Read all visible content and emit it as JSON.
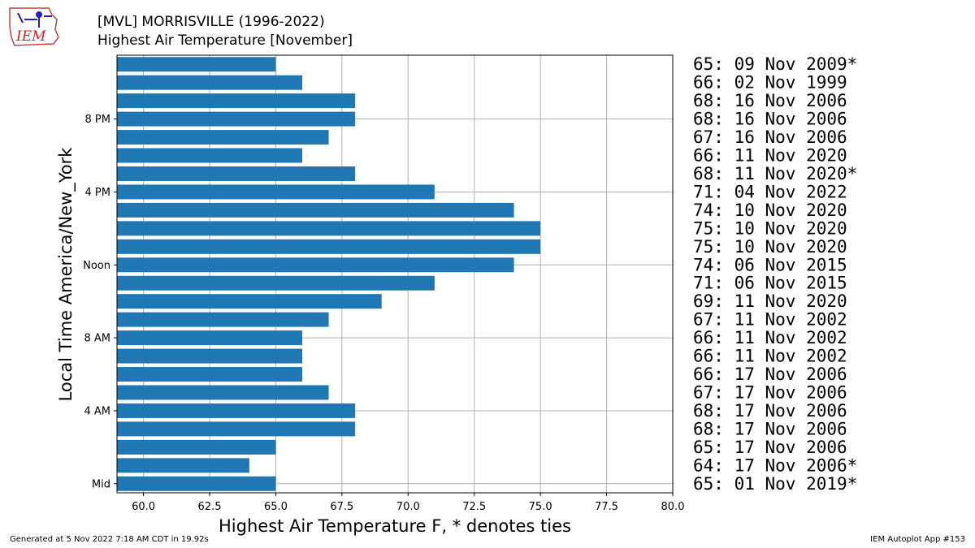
{
  "header": {
    "logo_text": "IEM",
    "title_line1": "[MVL] MORRISVILLE (1996-2022)",
    "title_line2": "Highest Air Temperature [November]"
  },
  "footer": {
    "generated": "Generated at 5 Nov 2022 7:18 AM CDT in 19.92s",
    "app": "IEM Autoplot App #153"
  },
  "colors": {
    "bar": "#1f77b4",
    "grid": "#b0b0b0"
  },
  "chart_data": {
    "type": "bar",
    "orientation": "horizontal",
    "xlabel": "Highest Air Temperature F, * denotes ties",
    "ylabel": "Local Time America/New_York",
    "xlim": [
      59,
      80
    ],
    "xticks": [
      "60.0",
      "62.5",
      "65.0",
      "67.5",
      "70.0",
      "72.5",
      "75.0",
      "77.5",
      "80.0"
    ],
    "yticks": [
      {
        "hour": 0,
        "label": "Mid"
      },
      {
        "hour": 4,
        "label": "4 AM"
      },
      {
        "hour": 8,
        "label": "8 AM"
      },
      {
        "hour": 12,
        "label": "Noon"
      },
      {
        "hour": 16,
        "label": "4 PM"
      },
      {
        "hour": 20,
        "label": "8 PM"
      }
    ],
    "grid": true,
    "hours": [
      0,
      1,
      2,
      3,
      4,
      5,
      6,
      7,
      8,
      9,
      10,
      11,
      12,
      13,
      14,
      15,
      16,
      17,
      18,
      19,
      20,
      21,
      22,
      23
    ],
    "values": [
      65,
      64,
      65,
      68,
      68,
      67,
      66,
      66,
      66,
      67,
      69,
      71,
      74,
      75,
      75,
      74,
      71,
      68,
      66,
      67,
      68,
      68,
      66,
      65
    ],
    "annotations": [
      "65: 01 Nov 2019*",
      "64: 17 Nov 2006*",
      "65: 17 Nov 2006",
      "68: 17 Nov 2006",
      "68: 17 Nov 2006",
      "67: 17 Nov 2006",
      "66: 17 Nov 2006",
      "66: 11 Nov 2002",
      "66: 11 Nov 2002",
      "67: 11 Nov 2002",
      "69: 11 Nov 2020",
      "71: 06 Nov 2015",
      "74: 06 Nov 2015",
      "75: 10 Nov 2020",
      "75: 10 Nov 2020",
      "74: 10 Nov 2020",
      "71: 04 Nov 2022",
      "68: 11 Nov 2020*",
      "66: 11 Nov 2020",
      "67: 16 Nov 2006",
      "68: 16 Nov 2006",
      "68: 16 Nov 2006",
      "66: 02 Nov 1999",
      "65: 09 Nov 2009*"
    ]
  }
}
